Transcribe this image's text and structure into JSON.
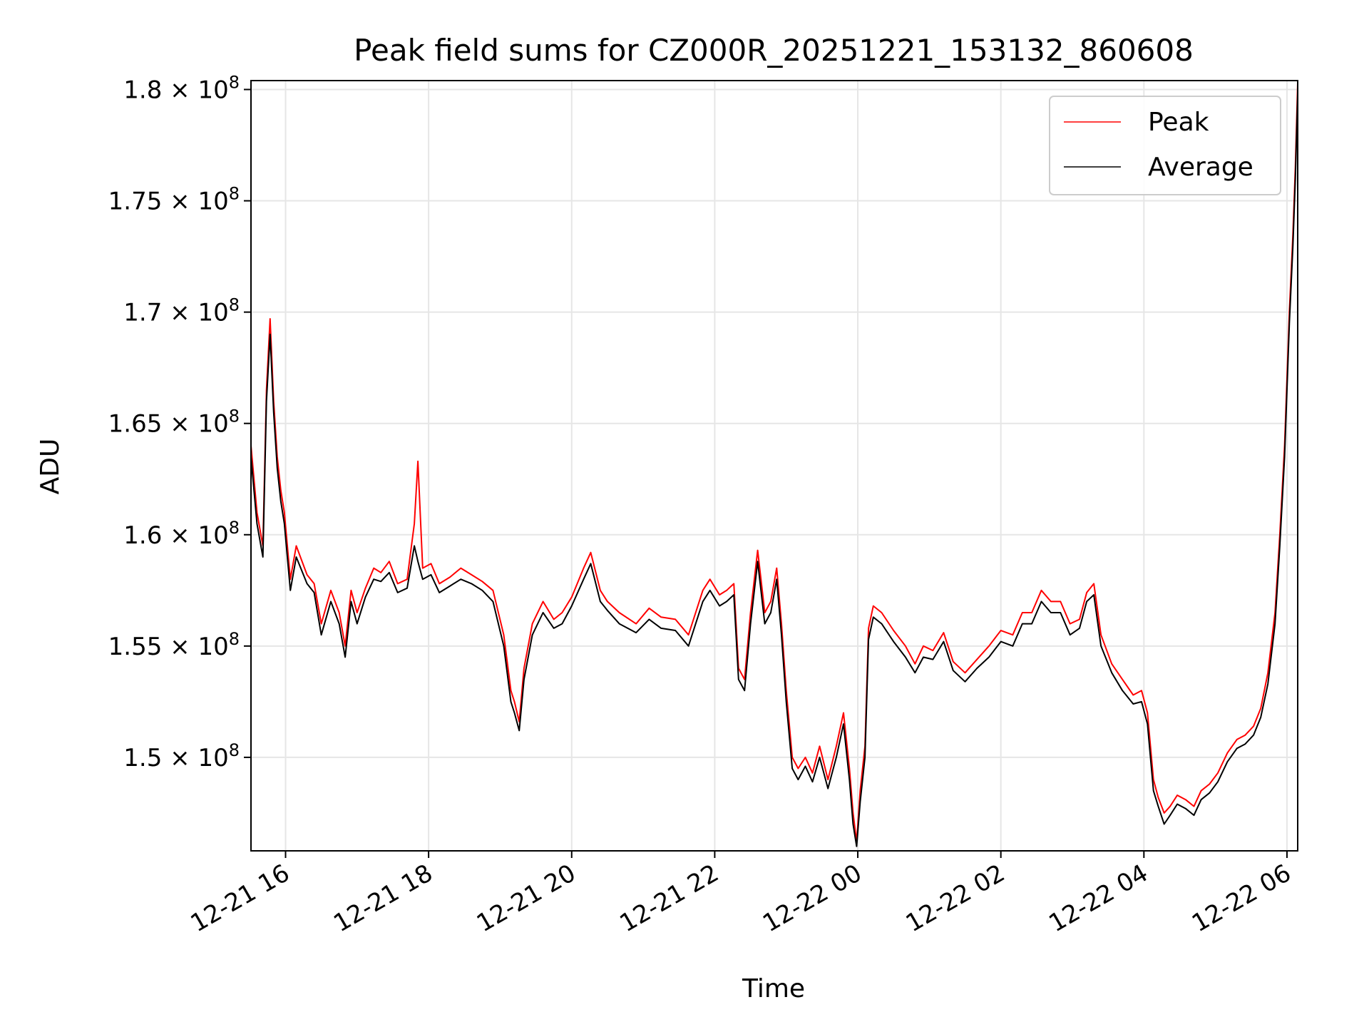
{
  "chart_data": {
    "type": "line",
    "title": "Peak field sums for CZ000R_20251221_153132_860608",
    "xlabel": "Time",
    "ylabel": "ADU",
    "x_range": [
      "2025-12-21 15:31",
      "2025-12-22 06:09"
    ],
    "ylim": [
      145800000,
      180400000
    ],
    "grid": true,
    "legend_position": "upper right",
    "x_ticks": [
      {
        "x": "2025-12-21 16:00",
        "label": "12-21 16"
      },
      {
        "x": "2025-12-21 18:00",
        "label": "12-21 18"
      },
      {
        "x": "2025-12-21 20:00",
        "label": "12-21 20"
      },
      {
        "x": "2025-12-21 22:00",
        "label": "12-21 22"
      },
      {
        "x": "2025-12-22 00:00",
        "label": "12-22 00"
      },
      {
        "x": "2025-12-22 02:00",
        "label": "12-22 02"
      },
      {
        "x": "2025-12-22 04:00",
        "label": "12-22 04"
      },
      {
        "x": "2025-12-22 06:00",
        "label": "12-22 06"
      }
    ],
    "y_ticks": [
      {
        "value": 150000000,
        "mantissa": "1.5",
        "base": "10",
        "exp": "8"
      },
      {
        "value": 155000000,
        "mantissa": "1.55",
        "base": "10",
        "exp": "8"
      },
      {
        "value": 160000000,
        "mantissa": "1.6",
        "base": "10",
        "exp": "8"
      },
      {
        "value": 165000000,
        "mantissa": "1.65",
        "base": "10",
        "exp": "8"
      },
      {
        "value": 170000000,
        "mantissa": "1.7",
        "base": "10",
        "exp": "8"
      },
      {
        "value": 175000000,
        "mantissa": "1.75",
        "base": "10",
        "exp": "8"
      },
      {
        "value": 180000000,
        "mantissa": "1.8",
        "base": "10",
        "exp": "8"
      }
    ],
    "series": [
      {
        "name": "Peak",
        "color": "#ff0000",
        "x": [
          "2025-12-21 15:31",
          "2025-12-21 15:36",
          "2025-12-21 15:41",
          "2025-12-21 15:44",
          "2025-12-21 15:47",
          "2025-12-21 15:50",
          "2025-12-21 15:53",
          "2025-12-21 15:56",
          "2025-12-21 15:59",
          "2025-12-21 16:04",
          "2025-12-21 16:09",
          "2025-12-21 16:18",
          "2025-12-21 16:24",
          "2025-12-21 16:30",
          "2025-12-21 16:38",
          "2025-12-21 16:45",
          "2025-12-21 16:50",
          "2025-12-21 16:55",
          "2025-12-21 17:00",
          "2025-12-21 17:07",
          "2025-12-21 17:14",
          "2025-12-21 17:20",
          "2025-12-21 17:27",
          "2025-12-21 17:34",
          "2025-12-21 17:42",
          "2025-12-21 17:48",
          "2025-12-21 17:51",
          "2025-12-21 17:55",
          "2025-12-21 18:02",
          "2025-12-21 18:09",
          "2025-12-21 18:18",
          "2025-12-21 18:27",
          "2025-12-21 18:36",
          "2025-12-21 18:45",
          "2025-12-21 18:54",
          "2025-12-21 19:03",
          "2025-12-21 19:09",
          "2025-12-21 19:12",
          "2025-12-21 19:16",
          "2025-12-21 19:20",
          "2025-12-21 19:27",
          "2025-12-21 19:36",
          "2025-12-21 19:45",
          "2025-12-21 19:52",
          "2025-12-21 20:00",
          "2025-12-21 20:10",
          "2025-12-21 20:16",
          "2025-12-21 20:24",
          "2025-12-21 20:30",
          "2025-12-21 20:40",
          "2025-12-21 20:54",
          "2025-12-21 21:05",
          "2025-12-21 21:15",
          "2025-12-21 21:27",
          "2025-12-21 21:38",
          "2025-12-21 21:50",
          "2025-12-21 21:56",
          "2025-12-21 22:04",
          "2025-12-21 22:10",
          "2025-12-21 22:16",
          "2025-12-21 22:20",
          "2025-12-21 22:25",
          "2025-12-21 22:30",
          "2025-12-21 22:36",
          "2025-12-21 22:42",
          "2025-12-21 22:47",
          "2025-12-21 22:52",
          "2025-12-21 22:56",
          "2025-12-21 23:00",
          "2025-12-21 23:05",
          "2025-12-21 23:10",
          "2025-12-21 23:16",
          "2025-12-21 23:22",
          "2025-12-21 23:28",
          "2025-12-21 23:35",
          "2025-12-21 23:42",
          "2025-12-21 23:48",
          "2025-12-21 23:53",
          "2025-12-21 23:56",
          "2025-12-21 23:59",
          "2025-12-22 00:02",
          "2025-12-22 00:06",
          "2025-12-22 00:09",
          "2025-12-22 00:13",
          "2025-12-22 00:20",
          "2025-12-22 00:30",
          "2025-12-22 00:40",
          "2025-12-22 00:48",
          "2025-12-22 00:55",
          "2025-12-22 01:03",
          "2025-12-22 01:12",
          "2025-12-22 01:20",
          "2025-12-22 01:30",
          "2025-12-22 01:40",
          "2025-12-22 01:50",
          "2025-12-22 02:00",
          "2025-12-22 02:10",
          "2025-12-22 02:18",
          "2025-12-22 02:26",
          "2025-12-22 02:34",
          "2025-12-22 02:42",
          "2025-12-22 02:50",
          "2025-12-22 02:58",
          "2025-12-22 03:06",
          "2025-12-22 03:12",
          "2025-12-22 03:18",
          "2025-12-22 03:24",
          "2025-12-22 03:33",
          "2025-12-22 03:42",
          "2025-12-22 03:51",
          "2025-12-22 03:58",
          "2025-12-22 04:03",
          "2025-12-22 04:08",
          "2025-12-22 04:12",
          "2025-12-22 04:17",
          "2025-12-22 04:22",
          "2025-12-22 04:28",
          "2025-12-22 04:35",
          "2025-12-22 04:42",
          "2025-12-22 04:48",
          "2025-12-22 04:55",
          "2025-12-22 05:02",
          "2025-12-22 05:10",
          "2025-12-22 05:18",
          "2025-12-22 05:25",
          "2025-12-22 05:32",
          "2025-12-22 05:38",
          "2025-12-22 05:44",
          "2025-12-22 05:50",
          "2025-12-22 05:54",
          "2025-12-22 05:58",
          "2025-12-22 06:02",
          "2025-12-22 06:05",
          "2025-12-22 06:07",
          "2025-12-22 06:09"
        ],
        "values": [
          164000000,
          161000000,
          159500000,
          166500000,
          169700000,
          166000000,
          163500000,
          162000000,
          161000000,
          158000000,
          159500000,
          158200000,
          157800000,
          156000000,
          157500000,
          156500000,
          155000000,
          157500000,
          156500000,
          157600000,
          158500000,
          158300000,
          158800000,
          157800000,
          158000000,
          160500000,
          163300000,
          158500000,
          158700000,
          157800000,
          158100000,
          158500000,
          158200000,
          157900000,
          157500000,
          155500000,
          153000000,
          152500000,
          151600000,
          154000000,
          156000000,
          157000000,
          156200000,
          156500000,
          157200000,
          158500000,
          159200000,
          157500000,
          157000000,
          156500000,
          156000000,
          156700000,
          156300000,
          156200000,
          155500000,
          157500000,
          158000000,
          157300000,
          157500000,
          157800000,
          154000000,
          153500000,
          156500000,
          159300000,
          156500000,
          157000000,
          158500000,
          156000000,
          153000000,
          150000000,
          149500000,
          150000000,
          149300000,
          150500000,
          149000000,
          150500000,
          152000000,
          149500000,
          147500000,
          146200000,
          148500000,
          150500000,
          155800000,
          156800000,
          156500000,
          155700000,
          155000000,
          154200000,
          155000000,
          154800000,
          155600000,
          154300000,
          153800000,
          154400000,
          155000000,
          155700000,
          155500000,
          156500000,
          156500000,
          157500000,
          157000000,
          157000000,
          156000000,
          156200000,
          157400000,
          157800000,
          155500000,
          154200000,
          153500000,
          152800000,
          153000000,
          152000000,
          149000000,
          148200000,
          147500000,
          147800000,
          148300000,
          148100000,
          147800000,
          148500000,
          148800000,
          149300000,
          150200000,
          150800000,
          151000000,
          151400000,
          152200000,
          153800000,
          156500000,
          160000000,
          164000000,
          170000000,
          173500000,
          176500000,
          180300000
        ]
      },
      {
        "name": "Average",
        "color": "#000000",
        "x": [
          "2025-12-21 15:31",
          "2025-12-21 15:36",
          "2025-12-21 15:41",
          "2025-12-21 15:44",
          "2025-12-21 15:47",
          "2025-12-21 15:50",
          "2025-12-21 15:53",
          "2025-12-21 15:56",
          "2025-12-21 15:59",
          "2025-12-21 16:04",
          "2025-12-21 16:09",
          "2025-12-21 16:18",
          "2025-12-21 16:24",
          "2025-12-21 16:30",
          "2025-12-21 16:38",
          "2025-12-21 16:45",
          "2025-12-21 16:50",
          "2025-12-21 16:55",
          "2025-12-21 17:00",
          "2025-12-21 17:07",
          "2025-12-21 17:14",
          "2025-12-21 17:20",
          "2025-12-21 17:27",
          "2025-12-21 17:34",
          "2025-12-21 17:42",
          "2025-12-21 17:48",
          "2025-12-21 17:51",
          "2025-12-21 17:55",
          "2025-12-21 18:02",
          "2025-12-21 18:09",
          "2025-12-21 18:18",
          "2025-12-21 18:27",
          "2025-12-21 18:36",
          "2025-12-21 18:45",
          "2025-12-21 18:54",
          "2025-12-21 19:03",
          "2025-12-21 19:09",
          "2025-12-21 19:12",
          "2025-12-21 19:16",
          "2025-12-21 19:20",
          "2025-12-21 19:27",
          "2025-12-21 19:36",
          "2025-12-21 19:45",
          "2025-12-21 19:52",
          "2025-12-21 20:00",
          "2025-12-21 20:10",
          "2025-12-21 20:16",
          "2025-12-21 20:24",
          "2025-12-21 20:30",
          "2025-12-21 20:40",
          "2025-12-21 20:54",
          "2025-12-21 21:05",
          "2025-12-21 21:15",
          "2025-12-21 21:27",
          "2025-12-21 21:38",
          "2025-12-21 21:50",
          "2025-12-21 21:56",
          "2025-12-21 22:04",
          "2025-12-21 22:10",
          "2025-12-21 22:16",
          "2025-12-21 22:20",
          "2025-12-21 22:25",
          "2025-12-21 22:30",
          "2025-12-21 22:36",
          "2025-12-21 22:42",
          "2025-12-21 22:47",
          "2025-12-21 22:52",
          "2025-12-21 22:56",
          "2025-12-21 23:00",
          "2025-12-21 23:05",
          "2025-12-21 23:10",
          "2025-12-21 23:16",
          "2025-12-21 23:22",
          "2025-12-21 23:28",
          "2025-12-21 23:35",
          "2025-12-21 23:42",
          "2025-12-21 23:48",
          "2025-12-21 23:53",
          "2025-12-21 23:56",
          "2025-12-21 23:59",
          "2025-12-22 00:02",
          "2025-12-22 00:06",
          "2025-12-22 00:09",
          "2025-12-22 00:13",
          "2025-12-22 00:20",
          "2025-12-22 00:30",
          "2025-12-22 00:40",
          "2025-12-22 00:48",
          "2025-12-22 00:55",
          "2025-12-22 01:03",
          "2025-12-22 01:12",
          "2025-12-22 01:20",
          "2025-12-22 01:30",
          "2025-12-22 01:40",
          "2025-12-22 01:50",
          "2025-12-22 02:00",
          "2025-12-22 02:10",
          "2025-12-22 02:18",
          "2025-12-22 02:26",
          "2025-12-22 02:34",
          "2025-12-22 02:42",
          "2025-12-22 02:50",
          "2025-12-22 02:58",
          "2025-12-22 03:06",
          "2025-12-22 03:12",
          "2025-12-22 03:18",
          "2025-12-22 03:24",
          "2025-12-22 03:33",
          "2025-12-22 03:42",
          "2025-12-22 03:51",
          "2025-12-22 03:58",
          "2025-12-22 04:03",
          "2025-12-22 04:08",
          "2025-12-22 04:12",
          "2025-12-22 04:17",
          "2025-12-22 04:22",
          "2025-12-22 04:28",
          "2025-12-22 04:35",
          "2025-12-22 04:42",
          "2025-12-22 04:48",
          "2025-12-22 04:55",
          "2025-12-22 05:02",
          "2025-12-22 05:10",
          "2025-12-22 05:18",
          "2025-12-22 05:25",
          "2025-12-22 05:32",
          "2025-12-22 05:38",
          "2025-12-22 05:44",
          "2025-12-22 05:50",
          "2025-12-22 05:54",
          "2025-12-22 05:58",
          "2025-12-22 06:02",
          "2025-12-22 06:05",
          "2025-12-22 06:07",
          "2025-12-22 06:09"
        ],
        "values": [
          163500000,
          160500000,
          159000000,
          166000000,
          169000000,
          165500000,
          163000000,
          161500000,
          160500000,
          157500000,
          159000000,
          157800000,
          157400000,
          155500000,
          157000000,
          156000000,
          154500000,
          157000000,
          156000000,
          157200000,
          158000000,
          157900000,
          158300000,
          157400000,
          157600000,
          159500000,
          158800000,
          158000000,
          158200000,
          157400000,
          157700000,
          158000000,
          157800000,
          157500000,
          157000000,
          155000000,
          152500000,
          152000000,
          151200000,
          153500000,
          155500000,
          156500000,
          155800000,
          156000000,
          156800000,
          158000000,
          158700000,
          157000000,
          156600000,
          156000000,
          155600000,
          156200000,
          155800000,
          155700000,
          155000000,
          157000000,
          157500000,
          156800000,
          157000000,
          157300000,
          153500000,
          153000000,
          156000000,
          158800000,
          156000000,
          156500000,
          158000000,
          155500000,
          152500000,
          149500000,
          149000000,
          149600000,
          148900000,
          150000000,
          148600000,
          150000000,
          151500000,
          149000000,
          147000000,
          146000000,
          148000000,
          150000000,
          155300000,
          156300000,
          156000000,
          155200000,
          154500000,
          153800000,
          154500000,
          154400000,
          155200000,
          153900000,
          153400000,
          154000000,
          154500000,
          155200000,
          155000000,
          156000000,
          156000000,
          157000000,
          156500000,
          156500000,
          155500000,
          155800000,
          157000000,
          157300000,
          155000000,
          153800000,
          153000000,
          152400000,
          152500000,
          151500000,
          148500000,
          147800000,
          147000000,
          147400000,
          147900000,
          147700000,
          147400000,
          148100000,
          148400000,
          148900000,
          149800000,
          150400000,
          150600000,
          151000000,
          151800000,
          153300000,
          156000000,
          159500000,
          163500000,
          169500000,
          173000000,
          176000000,
          179800000
        ]
      }
    ]
  }
}
